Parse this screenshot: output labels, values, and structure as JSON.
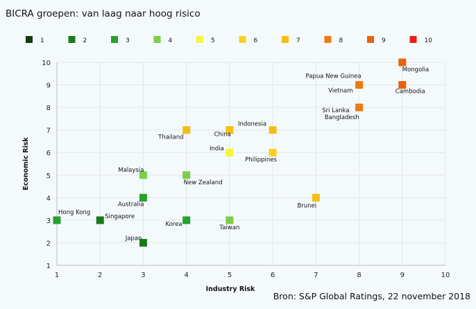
{
  "title": "BICRA groepen: van laag naar hoog risico",
  "source": "Bron: S&P Global Ratings, 22 november 2018",
  "chart_data": {
    "type": "scatter",
    "title": "BICRA groepen: van laag naar hoog risico",
    "xlabel": "Industry Risk",
    "ylabel": "Economic Risk",
    "xlim": [
      1,
      10
    ],
    "ylim": [
      1,
      10
    ],
    "xticks": [
      "1",
      "2",
      "3",
      "4",
      "5",
      "6",
      "7",
      "8",
      "9",
      "10"
    ],
    "yticks": [
      "1",
      "2",
      "3",
      "4",
      "5",
      "6",
      "7",
      "8",
      "9",
      "10"
    ],
    "grid": true,
    "legend_position": "top",
    "legend": [
      {
        "label": "1",
        "color": "#0b3d0b"
      },
      {
        "label": "2",
        "color": "#1a7a1a"
      },
      {
        "label": "3",
        "color": "#27a02f"
      },
      {
        "label": "4",
        "color": "#7ccf48"
      },
      {
        "label": "5",
        "color": "#f5f53a"
      },
      {
        "label": "6",
        "color": "#f8d21f"
      },
      {
        "label": "7",
        "color": "#f5bf12"
      },
      {
        "label": "8",
        "color": "#ef7a12"
      },
      {
        "label": "9",
        "color": "#e8630a"
      },
      {
        "label": "10",
        "color": "#f21a1a"
      }
    ],
    "points": [
      {
        "name": "Hong Kong",
        "x": 1,
        "y": 3,
        "group": 3
      },
      {
        "name": "Singapore",
        "x": 2,
        "y": 3,
        "group": 2
      },
      {
        "name": "Japan",
        "x": 3,
        "y": 2,
        "group": 2
      },
      {
        "name": "Australia",
        "x": 3,
        "y": 4,
        "group": 3
      },
      {
        "name": "Malaysia",
        "x": 3,
        "y": 5,
        "group": 4
      },
      {
        "name": "Korea",
        "x": 4,
        "y": 3,
        "group": 3
      },
      {
        "name": "New Zealand",
        "x": 4,
        "y": 5,
        "group": 4
      },
      {
        "name": "Thailand",
        "x": 4,
        "y": 7,
        "group": 7
      },
      {
        "name": "Taiwan",
        "x": 5,
        "y": 3,
        "group": 4
      },
      {
        "name": "India",
        "x": 5,
        "y": 6,
        "group": 5
      },
      {
        "name": "China",
        "x": 5,
        "y": 7,
        "group": 7
      },
      {
        "name": "Philippines",
        "x": 6,
        "y": 6,
        "group": 6
      },
      {
        "name": "Indonesia",
        "x": 6,
        "y": 7,
        "group": 7
      },
      {
        "name": "Brunei",
        "x": 7,
        "y": 4,
        "group": 7
      },
      {
        "name": "Sri Lanka",
        "x": 8,
        "y": 8,
        "group": 8
      },
      {
        "name": "Bangladesh",
        "x": 8,
        "y": 8,
        "group": 8
      },
      {
        "name": "Vietnam",
        "x": 8,
        "y": 9,
        "group": 8
      },
      {
        "name": "Papua New Guinea",
        "x": 8,
        "y": 9,
        "group": 8
      },
      {
        "name": "Cambodia",
        "x": 9,
        "y": 9,
        "group": 9
      },
      {
        "name": "Mongolia",
        "x": 9,
        "y": 10,
        "group": 9
      }
    ]
  }
}
